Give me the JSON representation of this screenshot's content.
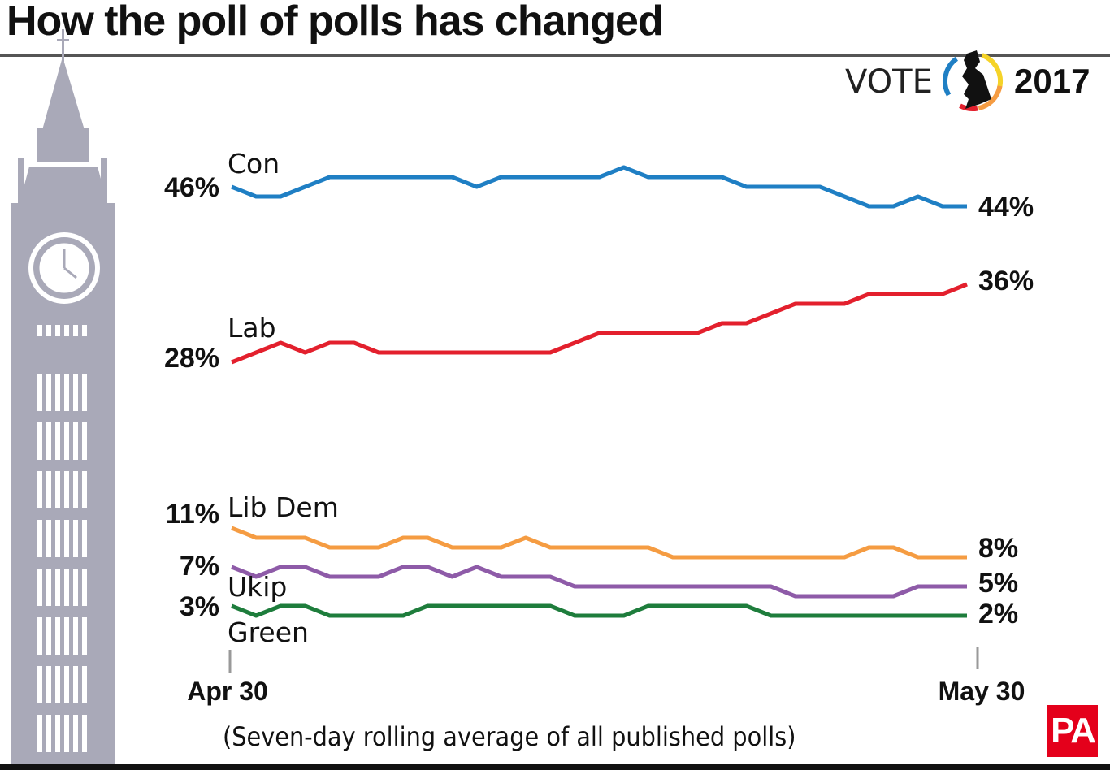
{
  "title": "How the poll of polls has changed",
  "footnote": "(Seven-day rolling average of all published polls)",
  "logo": {
    "vote": "VOTE",
    "year": "2017",
    "ring_colors": [
      "#1f7fc4",
      "#f5d328",
      "#f59c42",
      "#e3202d",
      "#1e7d3c"
    ]
  },
  "pa_logo": "PA",
  "chart_data": {
    "type": "line",
    "title": "How the poll of polls has changed",
    "x_start_label": "Apr 30",
    "x_end_label": "May 30",
    "x_range": [
      "Apr 30",
      "May 30"
    ],
    "ylabel": "",
    "unit": "%",
    "grid": false,
    "series": [
      {
        "name": "Con",
        "color": "#1f7fc4",
        "start_label": "46%",
        "end_label": "44%",
        "values": [
          46,
          45,
          45,
          46,
          47,
          47,
          47,
          47,
          47,
          47,
          46,
          47,
          47,
          47,
          47,
          47,
          48,
          47,
          47,
          47,
          47,
          46,
          46,
          46,
          46,
          45,
          44,
          44,
          45,
          44,
          44
        ]
      },
      {
        "name": "Lab",
        "color": "#e3202d",
        "start_label": "28%",
        "end_label": "36%",
        "values": [
          28,
          29,
          30,
          29,
          30,
          30,
          29,
          29,
          29,
          29,
          29,
          29,
          29,
          29,
          30,
          31,
          31,
          31,
          31,
          31,
          32,
          32,
          33,
          34,
          34,
          34,
          35,
          35,
          35,
          35,
          36
        ]
      },
      {
        "name": "Lib Dem",
        "color": "#f59c42",
        "start_label": "11%",
        "end_label": "8%",
        "values": [
          11,
          10,
          10,
          10,
          9,
          9,
          9,
          10,
          10,
          9,
          9,
          9,
          10,
          9,
          9,
          9,
          9,
          9,
          8,
          8,
          8,
          8,
          8,
          8,
          8,
          8,
          9,
          9,
          8,
          8,
          8
        ]
      },
      {
        "name": "Ukip",
        "color": "#8e5ba8",
        "start_label": "7%",
        "end_label": "5%",
        "values": [
          7,
          6,
          7,
          7,
          6,
          6,
          6,
          7,
          7,
          6,
          7,
          6,
          6,
          6,
          5,
          5,
          5,
          5,
          5,
          5,
          5,
          5,
          5,
          4,
          4,
          4,
          4,
          4,
          5,
          5,
          5
        ]
      },
      {
        "name": "Green",
        "color": "#1e7d3c",
        "start_label": "3%",
        "end_label": "2%",
        "values": [
          3,
          2,
          3,
          3,
          2,
          2,
          2,
          2,
          3,
          3,
          3,
          3,
          3,
          3,
          2,
          2,
          2,
          3,
          3,
          3,
          3,
          3,
          2,
          2,
          2,
          2,
          2,
          2,
          2,
          2,
          2
        ]
      }
    ]
  }
}
